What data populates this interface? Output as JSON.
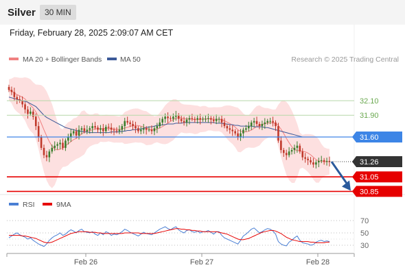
{
  "header": {
    "symbol": "Silver",
    "interval": "30 MIN"
  },
  "timestamp": "Friday, February 28, 2025 2:09:07 AM CET",
  "legend": {
    "ma20": "MA 20 + Bollinger Bands",
    "ma50": "MA 50",
    "credit": "Research © 2025 Trading Central",
    "rsi": "RSI",
    "rsi_ma": "9MA"
  },
  "colors": {
    "ma20": "#f08080",
    "band": "#fde0e0",
    "ma50": "#3b5998",
    "level_green": "#6aa84f",
    "pivot": "#3d85e6",
    "support": "#e60000",
    "last_price": "#333333",
    "up": "#3a7d2c",
    "down": "#c0392b",
    "arrow": "#2a5a9c",
    "rsi": "#4a7fd4",
    "rsi_ma": "#e60000"
  },
  "chart_data": {
    "type": "candlestick",
    "x_ticks": [
      "Feb 26",
      "Feb 27",
      "Feb 28"
    ],
    "y_range": [
      30.75,
      32.45
    ],
    "levels": [
      {
        "name": "resistance-2",
        "value": 32.1,
        "label": "32.10",
        "style": "green"
      },
      {
        "name": "resistance-1",
        "value": 31.9,
        "label": "31.90",
        "style": "green"
      },
      {
        "name": "pivot",
        "value": 31.6,
        "label": "31.60",
        "style": "pivot"
      },
      {
        "name": "last-price",
        "value": 31.26,
        "label": "31.26",
        "style": "last"
      },
      {
        "name": "support-1",
        "value": 31.05,
        "label": "31.05",
        "style": "support"
      },
      {
        "name": "support-2",
        "value": 30.85,
        "label": "30.85",
        "style": "support"
      }
    ],
    "close": [
      32.25,
      32.22,
      32.15,
      32.12,
      32.1,
      32.05,
      31.98,
      31.92,
      31.95,
      31.88,
      31.75,
      31.6,
      31.45,
      31.35,
      31.32,
      31.4,
      31.45,
      31.48,
      31.5,
      31.52,
      31.45,
      31.55,
      31.6,
      31.65,
      31.68,
      31.62,
      31.7,
      31.72,
      31.68,
      31.7,
      31.72,
      31.75,
      31.73,
      31.7,
      31.72,
      31.68,
      31.74,
      31.73,
      31.7,
      31.69,
      31.68,
      31.7,
      31.75,
      31.82,
      31.8,
      31.78,
      31.75,
      31.72,
      31.68,
      31.7,
      31.72,
      31.7,
      31.7,
      31.68,
      31.72,
      31.75,
      31.8,
      31.85,
      31.88,
      31.86,
      31.85,
      31.88,
      31.9,
      31.85,
      31.82,
      31.8,
      31.84,
      31.86,
      31.85,
      31.84,
      31.86,
      31.84,
      31.85,
      31.85,
      31.86,
      31.84,
      31.82,
      31.85,
      31.85,
      31.8,
      31.75,
      31.72,
      31.7,
      31.68,
      31.65,
      31.6,
      31.65,
      31.7,
      31.72,
      31.75,
      31.8,
      31.82,
      31.78,
      31.75,
      31.78,
      31.8,
      31.82,
      31.82,
      31.8,
      31.75,
      31.55,
      31.42,
      31.38,
      31.35,
      31.4,
      31.42,
      31.45,
      31.48,
      31.4,
      31.32,
      31.3,
      31.28,
      31.25,
      31.22,
      31.25,
      31.27,
      31.28,
      31.26,
      31.27,
      31.26
    ],
    "ma50": [
      32.15,
      32.14,
      32.13,
      32.12,
      32.11,
      32.1,
      32.09,
      32.08,
      32.06,
      32.04,
      32.02,
      31.98,
      31.94,
      31.9,
      31.87,
      31.85,
      31.83,
      31.81,
      31.79,
      31.77,
      31.75,
      31.73,
      31.72,
      31.71,
      31.7,
      31.69,
      31.68,
      31.68,
      31.67,
      31.67,
      31.66,
      31.66,
      31.66,
      31.66,
      31.66,
      31.66,
      31.66,
      31.66,
      31.67,
      31.67,
      31.67,
      31.67,
      31.68,
      31.68,
      31.69,
      31.69,
      31.7,
      31.7,
      31.71,
      31.71,
      31.72,
      31.73,
      31.74,
      31.74,
      31.75,
      31.76,
      31.76,
      31.77,
      31.77,
      31.78,
      31.78,
      31.78,
      31.79,
      31.79,
      31.79,
      31.8,
      31.8,
      31.8,
      31.8,
      31.8,
      31.8,
      31.8,
      31.8,
      31.8,
      31.8,
      31.8,
      31.8,
      31.79,
      31.79,
      31.79,
      31.78,
      31.78,
      31.77,
      31.77,
      31.76,
      31.76,
      31.75,
      31.75,
      31.75,
      31.75,
      31.75,
      31.74,
      31.74,
      31.74,
      31.74,
      31.73,
      31.73,
      31.72,
      31.71,
      31.7,
      31.69,
      31.68,
      31.67,
      31.66,
      31.65,
      31.64,
      31.63,
      31.62,
      31.61,
      31.6
    ],
    "rsi": [
      42,
      45,
      48,
      50,
      47,
      45,
      43,
      40,
      42,
      38,
      35,
      32,
      30,
      28,
      32,
      38,
      42,
      45,
      47,
      50,
      46,
      48,
      52,
      55,
      53,
      50,
      54,
      56,
      52,
      51,
      50,
      52,
      48,
      46,
      50,
      47,
      52,
      50,
      46,
      48,
      47,
      49,
      52,
      56,
      54,
      51,
      49,
      47,
      45,
      48,
      51,
      49,
      48,
      47,
      50,
      53,
      56,
      58,
      60,
      57,
      55,
      58,
      60,
      55,
      52,
      50,
      54,
      55,
      52,
      51,
      53,
      50,
      52,
      52,
      54,
      51,
      48,
      52,
      52,
      46,
      42,
      40,
      38,
      36,
      34,
      32,
      38,
      45,
      48,
      52,
      56,
      58,
      54,
      50,
      52,
      55,
      57,
      56,
      53,
      48,
      36,
      32,
      30,
      29,
      35,
      38,
      42,
      45,
      38,
      34,
      33,
      32,
      30,
      31,
      35,
      37,
      38,
      36,
      37,
      36
    ],
    "rsi_ma": [
      46,
      46,
      46,
      46,
      46,
      45,
      45,
      44,
      43,
      42,
      41,
      39,
      37,
      35,
      34,
      34,
      35,
      37,
      39,
      41,
      43,
      45,
      47,
      49,
      50,
      51,
      52,
      52,
      52,
      52,
      51,
      51,
      51,
      50,
      50,
      49,
      49,
      49,
      49,
      49,
      49,
      49,
      49,
      50,
      50,
      50,
      50,
      50,
      50,
      49,
      49,
      49,
      49,
      49,
      49,
      50,
      51,
      52,
      53,
      54,
      55,
      56,
      57,
      57,
      56,
      56,
      55,
      55,
      54,
      54,
      53,
      53,
      52,
      52,
      52,
      52,
      52,
      52,
      51,
      50,
      49,
      48,
      46,
      44,
      42,
      40,
      39,
      39,
      40,
      41,
      43,
      45,
      47,
      49,
      51,
      52,
      53,
      54,
      54,
      53,
      51,
      49,
      46,
      43,
      41,
      39,
      38,
      37,
      36,
      36,
      36,
      36,
      35,
      35,
      34,
      34,
      34,
      34,
      35,
      35
    ],
    "rsi_ticks": [
      70,
      50,
      30
    ]
  }
}
